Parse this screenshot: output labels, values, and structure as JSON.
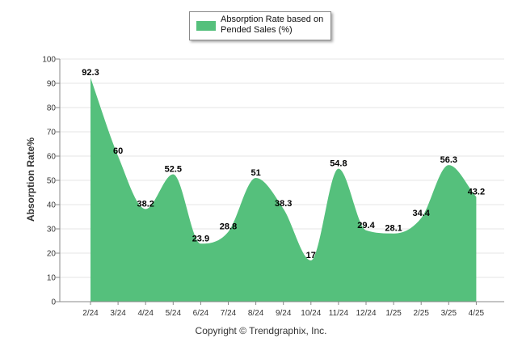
{
  "chart_data": {
    "type": "area",
    "categories": [
      "2/24",
      "3/24",
      "4/24",
      "5/24",
      "6/24",
      "7/24",
      "8/24",
      "9/24",
      "10/24",
      "11/24",
      "12/24",
      "1/25",
      "2/25",
      "3/25",
      "4/25"
    ],
    "series": [
      {
        "name": "Absorption Rate based on Pended Sales (%)",
        "values": [
          92.3,
          60,
          38.2,
          52.5,
          23.9,
          28.8,
          51,
          38.3,
          17,
          54.8,
          29.4,
          28.1,
          34.4,
          56.3,
          43.2
        ]
      }
    ],
    "data_labels": [
      "92.3",
      "60",
      "38.2",
      "52.5",
      "23.9",
      "28.8",
      "51",
      "38.3",
      "17",
      "54.8",
      "29.4",
      "28.1",
      "34.4",
      "56.3",
      "43.2"
    ],
    "ylabel": "Absorption Rate%",
    "ylim": [
      0,
      100
    ],
    "yticks": [
      0,
      10,
      20,
      30,
      40,
      50,
      60,
      70,
      80,
      90,
      100
    ],
    "grid": true,
    "legend_position": "top-center",
    "colors": {
      "fill": "#55c07c",
      "axis": "#888888",
      "grid": "#e6e6e6"
    }
  },
  "legend": {
    "label": "Absorption Rate based on Pended Sales (%)"
  },
  "footer": {
    "copyright": "Copyright © Trendgraphix, Inc."
  }
}
